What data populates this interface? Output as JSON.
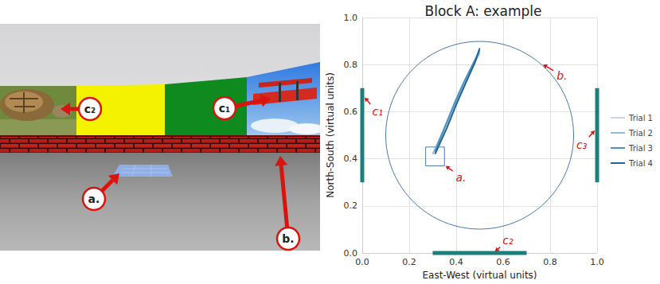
{
  "chart_data": {
    "type": "line",
    "title": "Block A: example",
    "x_label": "East-West (virtual units)",
    "y_label": "North-South (virtual units)",
    "xlim": [
      0,
      1
    ],
    "ylim": [
      0,
      1
    ],
    "xticks": [
      {
        "value": 0,
        "label": "0.0"
      },
      0.2,
      0.4,
      0.6,
      0.8,
      {
        "value": 1,
        "label": "1.0"
      }
    ],
    "yticks": [
      {
        "value": 0,
        "label": "0.0"
      },
      0.2,
      0.4,
      0.6,
      0.8,
      {
        "value": 1,
        "label": "1.0"
      }
    ],
    "grid": true,
    "legend": "right",
    "series": [
      {
        "name": "Trial 1",
        "color": "#c9d6e0",
        "values": [
          [
            0.31,
            0.42
          ],
          [
            0.35,
            0.52
          ],
          [
            0.39,
            0.62
          ],
          [
            0.43,
            0.71
          ],
          [
            0.47,
            0.79
          ],
          [
            0.49,
            0.84
          ]
        ]
      },
      {
        "name": "Trial 2",
        "color": "#8fbad3",
        "values": [
          [
            0.3,
            0.42
          ],
          [
            0.34,
            0.51
          ],
          [
            0.38,
            0.6
          ],
          [
            0.42,
            0.69
          ],
          [
            0.46,
            0.77
          ],
          [
            0.5,
            0.85
          ]
        ]
      },
      {
        "name": "Trial 3",
        "color": "#4d93bb",
        "values": [
          [
            0.31,
            0.43
          ],
          [
            0.35,
            0.53
          ],
          [
            0.39,
            0.63
          ],
          [
            0.43,
            0.72
          ],
          [
            0.47,
            0.8
          ],
          [
            0.5,
            0.86
          ]
        ]
      },
      {
        "name": "Trial 4",
        "color": "#23659a",
        "values": [
          [
            0.31,
            0.42
          ],
          [
            0.36,
            0.53
          ],
          [
            0.4,
            0.63
          ],
          [
            0.44,
            0.72
          ],
          [
            0.48,
            0.81
          ],
          [
            0.5,
            0.87
          ]
        ]
      }
    ],
    "arena": {
      "center": [
        0.5,
        0.5
      ],
      "radius": 0.4,
      "color": "#4a78b0"
    },
    "start_box": {
      "x": [
        0.27,
        0.35
      ],
      "y": [
        0.37,
        0.45
      ],
      "color": "#4a78b0"
    },
    "cues": {
      "color": "#1b7f7c",
      "segments": [
        {
          "x": [
            0,
            0
          ],
          "y": [
            0.3,
            0.7
          ]
        },
        {
          "x": [
            0.3,
            0.7
          ],
          "y": [
            0,
            0
          ]
        },
        {
          "x": [
            1,
            1
          ],
          "y": [
            0.3,
            0.7
          ]
        }
      ]
    },
    "annotations": {
      "color": "#e01010",
      "items": [
        {
          "text": "c₁",
          "xy": [
            0.055,
            0.61
          ],
          "target": [
            0.01,
            0.66
          ]
        },
        {
          "text": "c₃",
          "xy": [
            0.945,
            0.47
          ],
          "target": [
            0.99,
            0.52
          ]
        },
        {
          "text": "c₂",
          "xy": [
            0.61,
            0.045
          ],
          "target": [
            0.565,
            0.006
          ]
        },
        {
          "text": "a.",
          "xy": [
            0.41,
            0.33
          ],
          "target": [
            0.355,
            0.37
          ]
        },
        {
          "text": "b.",
          "xy": [
            0.84,
            0.76
          ],
          "target": [
            0.77,
            0.8
          ]
        }
      ]
    }
  },
  "scene": {
    "labels": [
      "c₂",
      "c₁",
      "a.",
      "b."
    ]
  }
}
